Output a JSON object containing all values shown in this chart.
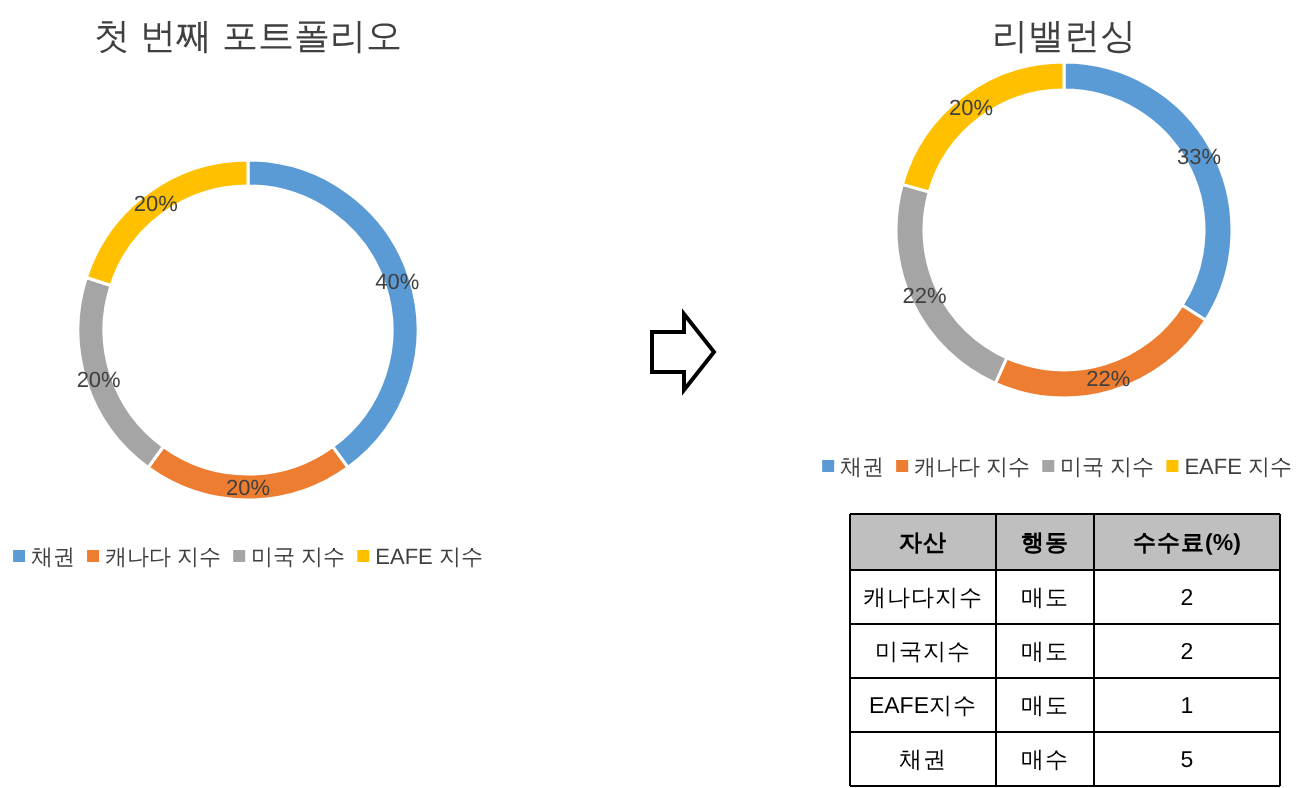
{
  "chart_data": [
    {
      "type": "donut",
      "title": "첫 번째 포트폴리오",
      "categories": [
        "채권",
        "캐나다 지수",
        "미국 지수",
        "EAFE 지수"
      ],
      "values": [
        40,
        20,
        20,
        20
      ],
      "colors": [
        "#5b9bd5",
        "#ed7d31",
        "#a5a5a5",
        "#ffc000"
      ],
      "value_labels": [
        "40%",
        "20%",
        "20%",
        "20%"
      ],
      "legend": "bottom"
    },
    {
      "type": "donut",
      "title": "리밸런싱",
      "categories": [
        "채권",
        "캐나다 지수",
        "미국 지수",
        "EAFE 지수"
      ],
      "values": [
        33,
        22,
        22,
        20
      ],
      "colors": [
        "#5b9bd5",
        "#ed7d31",
        "#a5a5a5",
        "#ffc000"
      ],
      "value_labels": [
        "33%",
        "22%",
        "22%",
        "20%"
      ],
      "legend": "bottom"
    },
    {
      "type": "other",
      "categories": [
        "자산",
        "행동",
        "수수료(%)"
      ],
      "annotations": [
        "캐나다지수",
        "매도",
        "2",
        "미국지수",
        "매도",
        "2",
        "EAFE지수",
        "매도",
        "1",
        "채권",
        "매수",
        "5"
      ]
    }
  ]
}
